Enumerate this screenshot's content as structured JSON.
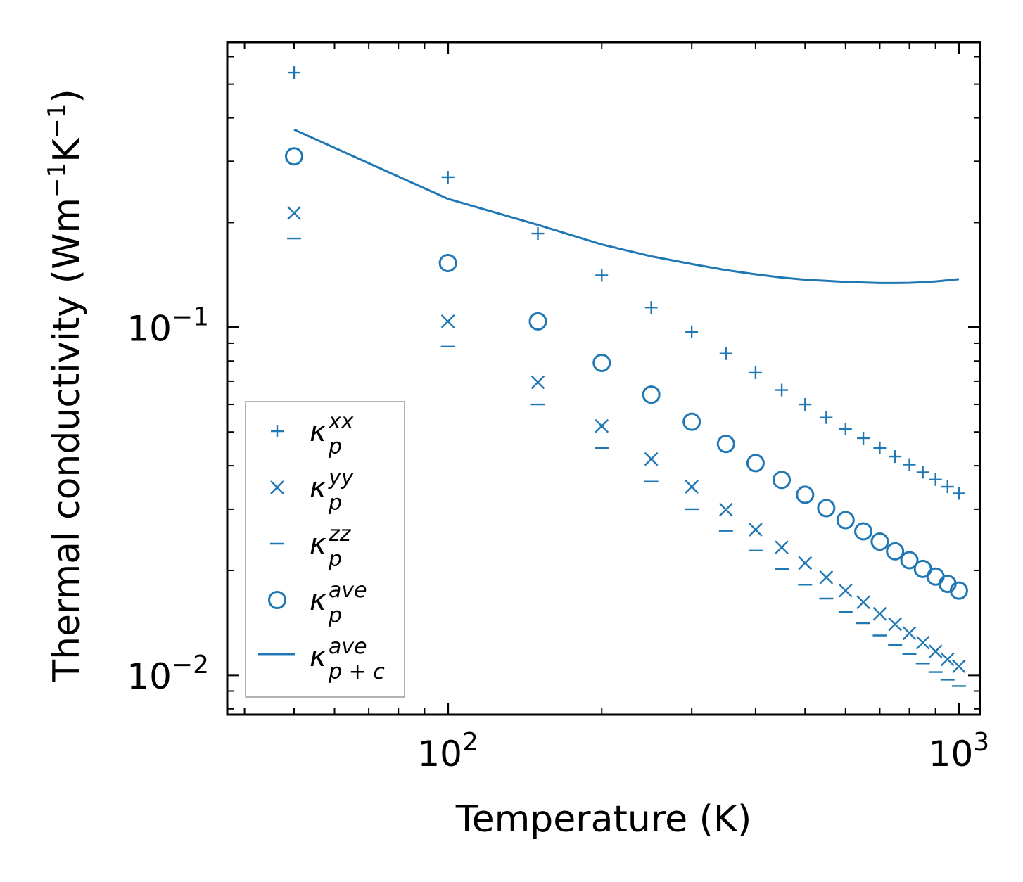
{
  "chart_data": {
    "type": "scatter",
    "xscale": "log",
    "yscale": "log",
    "xlabel": "Temperature (K)",
    "ylabel": "Thermal conductivity (Wm$^{-1}$K$^{-1}$)",
    "ylabel_parts": {
      "base": "Thermal conductivity (Wm",
      "sup1": "−1",
      "mid": "K",
      "sup2": "−1",
      "end": ")"
    },
    "xlim": [
      37,
      1100
    ],
    "ylim": [
      0.0077,
      0.66
    ],
    "x_ticks": [
      {
        "value": 100,
        "base": "10",
        "exp": "2"
      },
      {
        "value": 1000,
        "base": "10",
        "exp": "3"
      }
    ],
    "y_ticks": [
      {
        "value": 0.01,
        "base": "10",
        "exp": "−2"
      },
      {
        "value": 0.1,
        "base": "10",
        "exp": "−1"
      }
    ],
    "x": [
      50,
      100,
      150,
      200,
      250,
      300,
      350,
      400,
      450,
      500,
      550,
      600,
      650,
      700,
      750,
      800,
      850,
      900,
      950,
      1000
    ],
    "series": [
      {
        "name": "κ_p^xx",
        "label_base": "κ",
        "label_sub": "p",
        "label_sup": "xx",
        "marker": "plus",
        "values": [
          0.54,
          0.27,
          0.186,
          0.141,
          0.114,
          0.097,
          0.084,
          0.074,
          0.066,
          0.06,
          0.055,
          0.051,
          0.048,
          0.045,
          0.0425,
          0.0403,
          0.0383,
          0.0365,
          0.0348,
          0.0333
        ]
      },
      {
        "name": "κ_p^yy",
        "label_base": "κ",
        "label_sub": "p",
        "label_sup": "yy",
        "marker": "x",
        "values": [
          0.213,
          0.104,
          0.0695,
          0.052,
          0.0418,
          0.0348,
          0.0299,
          0.0262,
          0.0233,
          0.021,
          0.0191,
          0.0175,
          0.0162,
          0.015,
          0.014,
          0.0132,
          0.0124,
          0.0117,
          0.0111,
          0.0106
        ]
      },
      {
        "name": "κ_p^zz",
        "label_base": "κ",
        "label_sub": "p",
        "label_sup": "zz",
        "marker": "dash",
        "values": [
          0.18,
          0.088,
          0.06,
          0.045,
          0.036,
          0.03,
          0.026,
          0.0228,
          0.0202,
          0.0182,
          0.0166,
          0.0152,
          0.0141,
          0.013,
          0.0122,
          0.0115,
          0.0108,
          0.0102,
          0.0097,
          0.0093
        ]
      },
      {
        "name": "κ_p^ave",
        "label_base": "κ",
        "label_sub": "p",
        "label_sup": "ave",
        "marker": "circle",
        "values": [
          0.31,
          0.153,
          0.104,
          0.079,
          0.064,
          0.0535,
          0.0462,
          0.0407,
          0.0364,
          0.033,
          0.0302,
          0.0279,
          0.0259,
          0.0242,
          0.0227,
          0.0214,
          0.0202,
          0.0192,
          0.0183,
          0.0175
        ]
      },
      {
        "name": "κ_p+c^ave",
        "label_base": "κ",
        "label_sub": "p + c",
        "label_sup": "ave",
        "marker": "line",
        "values": [
          0.37,
          0.234,
          0.197,
          0.173,
          0.16,
          0.152,
          0.146,
          0.142,
          0.139,
          0.137,
          0.136,
          0.135,
          0.1345,
          0.134,
          0.134,
          0.1342,
          0.1348,
          0.1355,
          0.1365,
          0.1375
        ]
      }
    ],
    "legend_position": "lower-left",
    "grid": false,
    "colors": {
      "series": "#1f77b4",
      "axes": "#000000",
      "legend_frame": "#999999"
    }
  }
}
